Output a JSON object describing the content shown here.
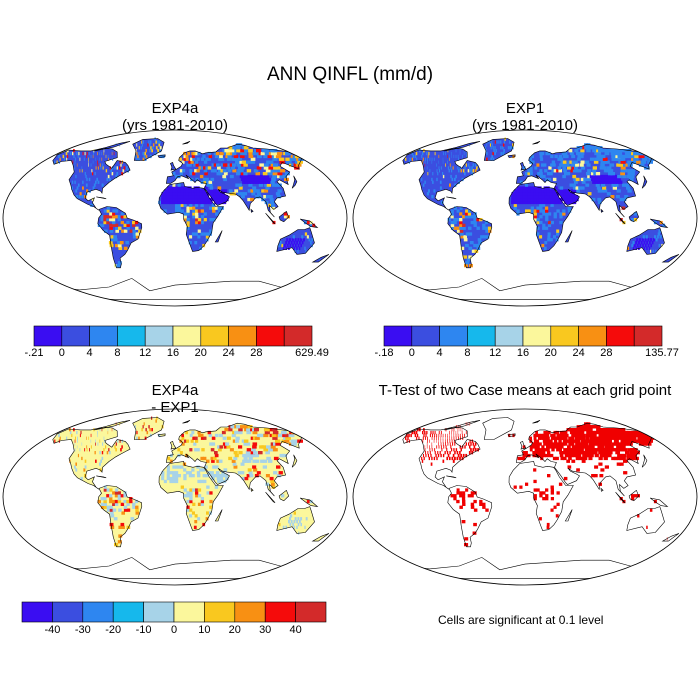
{
  "title": "ANN QINFL (mm/d)",
  "panels": [
    {
      "line1": "EXP4a",
      "line2": "(yrs 1981-2010)"
    },
    {
      "line1": "EXP1",
      "line2": "(yrs 1981-2010)"
    },
    {
      "line1": "EXP4a",
      "line2": "- EXP1"
    },
    {
      "line1": "T-Test of two Case means at each grid point",
      "line2": ""
    }
  ],
  "note": "Cells are significant at 0.1 level",
  "colors": {
    "levels": [
      "#3a0df2",
      "#3b4ee0",
      "#2e86f0",
      "#16b8ec",
      "#a7d3e8",
      "#fbf79c",
      "#f9c81f",
      "#f89013",
      "#f50b0b",
      "#d32a2a"
    ],
    "significant": "#f00000",
    "land_outline": "#000000"
  },
  "chart_data": [
    {
      "type": "heatmap",
      "title": "EXP4a (yrs 1981-2010)",
      "colorbar_labels": [
        "-.21",
        "0",
        "4",
        "8",
        "12",
        "16",
        "20",
        "24",
        "28",
        "629.49"
      ],
      "data_range": [
        -0.21,
        629.49
      ]
    },
    {
      "type": "heatmap",
      "title": "EXP1 (yrs 1981-2010)",
      "colorbar_labels": [
        "-.18",
        "0",
        "4",
        "8",
        "12",
        "16",
        "20",
        "24",
        "28",
        "135.77"
      ],
      "data_range": [
        -0.18,
        135.77
      ]
    },
    {
      "type": "heatmap",
      "title": "EXP4a - EXP1",
      "colorbar_labels": [
        "-40",
        "-30",
        "-20",
        "-10",
        "0",
        "10",
        "20",
        "30",
        "40"
      ]
    },
    {
      "type": "heatmap",
      "title": "T-Test of two Case means at each grid point",
      "legend": "Cells are significant at 0.1 level"
    }
  ]
}
